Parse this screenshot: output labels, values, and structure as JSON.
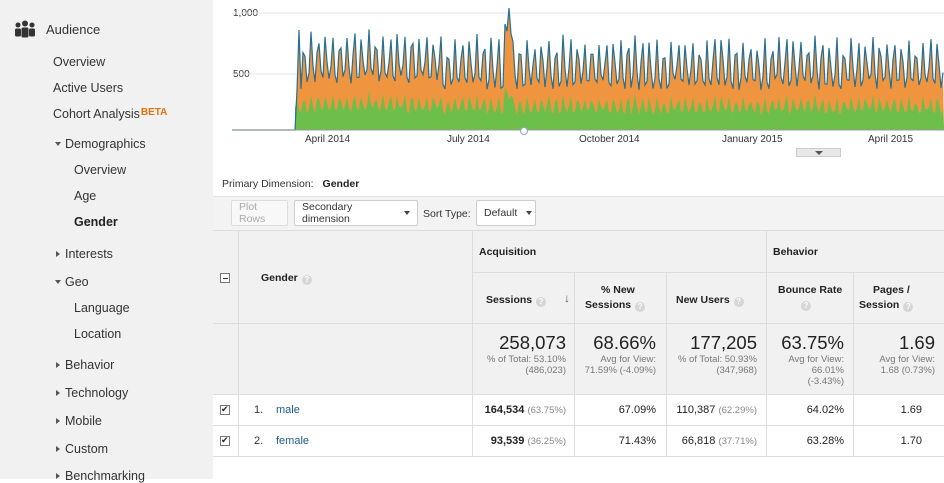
{
  "sidebar": {
    "section": "Audience",
    "items": {
      "overview": "Overview",
      "active_users": "Active Users",
      "cohort": "Cohort Analysis",
      "cohort_badge": "BETA",
      "demographics": "Demographics",
      "demo_overview": "Overview",
      "age": "Age",
      "gender": "Gender",
      "interests": "Interests",
      "geo": "Geo",
      "language": "Language",
      "location": "Location",
      "behavior": "Behavior",
      "technology": "Technology",
      "mobile": "Mobile",
      "custom": "Custom",
      "benchmarking": "Benchmarking"
    }
  },
  "chart": {
    "y_ticks": [
      "1,000",
      "500"
    ],
    "x_ticks": [
      "April 2014",
      "July 2014",
      "October 2014",
      "January 2015",
      "April 2015"
    ],
    "colors": {
      "orange": "#f0953f",
      "green": "#6cbf4a",
      "line": "#2a6f8f"
    }
  },
  "dimension": {
    "label": "Primary Dimension:",
    "value": "Gender"
  },
  "toolbar": {
    "plot_rows": "Plot Rows",
    "secondary": "Secondary dimension",
    "sort_label": "Sort Type:",
    "sort_value": "Default"
  },
  "table": {
    "groups": {
      "acquisition": "Acquisition",
      "behavior": "Behavior"
    },
    "headers": {
      "gender": "Gender",
      "sessions": "Sessions",
      "new_sessions_1": "% New",
      "new_sessions_2": "Sessions",
      "new_users": "New Users",
      "bounce_rate": "Bounce Rate",
      "pages_1": "Pages /",
      "pages_2": "Session"
    },
    "totals": {
      "sessions": "258,073",
      "sessions_sub1": "% of Total: 53.10%",
      "sessions_sub2": "(486,023)",
      "new_sessions": "68.66%",
      "new_sessions_sub1": "Avg for View:",
      "new_sessions_sub2": "71.59% (-4.09%)",
      "new_users": "177,205",
      "new_users_sub1": "% of Total: 50.93%",
      "new_users_sub2": "(347,968)",
      "bounce": "63.75%",
      "bounce_sub1": "Avg for View:",
      "bounce_sub2": "66.01%",
      "bounce_sub3": "(-3.43%)",
      "pages": "1.69",
      "pages_sub1": "Avg for View:",
      "pages_sub2": "1.68 (0.73%)"
    },
    "rows": [
      {
        "idx": "1.",
        "name": "male",
        "sessions": "164,534",
        "sessions_pct": "(63.75%)",
        "new_sessions": "67.09%",
        "new_users": "110,387",
        "new_users_pct": "(62.29%)",
        "bounce": "64.02%",
        "pages": "1.69"
      },
      {
        "idx": "2.",
        "name": "female",
        "sessions": "93,539",
        "sessions_pct": "(36.25%)",
        "new_sessions": "71.43%",
        "new_users": "66,818",
        "new_users_pct": "(37.71%)",
        "bounce": "63.28%",
        "pages": "1.70"
      }
    ]
  }
}
